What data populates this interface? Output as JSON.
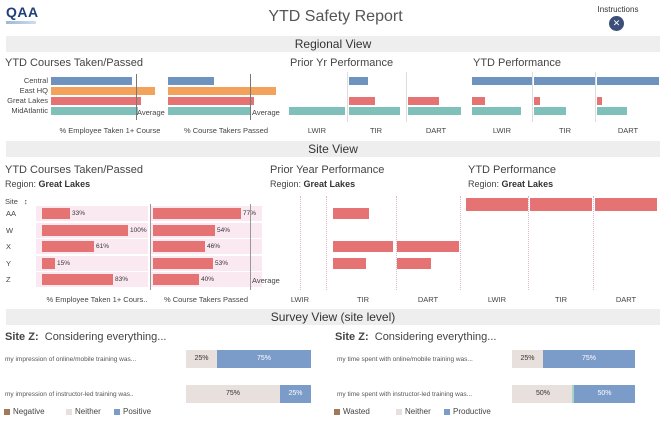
{
  "header": {
    "logo_text": "QAA",
    "title": "YTD Safety Report",
    "instructions_label": "Instructions",
    "instructions_icon": "tools-icon"
  },
  "regional": {
    "banner": "Regional View",
    "courses_title": "YTD Courses Taken/Passed",
    "prior_title": "Prior Yr Performance",
    "ytd_title": "YTD Performance",
    "regions": [
      "Central",
      "East HQ",
      "Great Lakes",
      "MidAtlantic"
    ],
    "colors": [
      "#6f93bf",
      "#f2a25b",
      "#e57373",
      "#7fc1ba"
    ],
    "average_label": "Average",
    "axis_taken": "% Employee Taken 1+ Course",
    "axis_passed": "% Course Takers Passed",
    "metrics": [
      "LWIR",
      "TIR",
      "DART"
    ],
    "taken": [
      0.72,
      0.93,
      0.8,
      0.78
    ],
    "passed": [
      0.42,
      0.98,
      0.78,
      0.75
    ],
    "prior": {
      "LWIR": [
        0,
        0,
        0,
        1.0
      ],
      "TIR": [
        0.35,
        0,
        0.48,
        0.95
      ],
      "DART": [
        0,
        0,
        0.55,
        0.95
      ]
    },
    "ytd": {
      "LWIR": [
        1.0,
        0,
        0.22,
        0.82
      ],
      "TIR": [
        1.0,
        0,
        0.1,
        0.52
      ],
      "DART": [
        1.0,
        0,
        0.08,
        0.48
      ]
    }
  },
  "site": {
    "banner": "Site View",
    "courses_title": "YTD Courses Taken/Passed",
    "prior_title": "Prior Year Performance",
    "ytd_title": "YTD Performance",
    "region_prefix": "Region:",
    "region_name": "Great Lakes",
    "site_header": "Site",
    "sites": [
      "AA",
      "W",
      "X",
      "Y",
      "Z"
    ],
    "taken_labels": [
      "33%",
      "100%",
      "61%",
      "15%",
      "83%"
    ],
    "taken": [
      0.33,
      1.0,
      0.61,
      0.15,
      0.83
    ],
    "passed_labels": [
      "77%",
      "54%",
      "46%",
      "53%",
      "40%"
    ],
    "passed": [
      0.77,
      0.54,
      0.46,
      0.53,
      0.4
    ],
    "average_label": "Average",
    "axis_taken": "% Employee Taken 1+ Cours..",
    "axis_passed": "% Course Takers Passed",
    "metrics": [
      "LWIR",
      "TIR",
      "DART"
    ],
    "prior": {
      "LWIR": [
        0,
        0,
        0,
        0,
        0
      ],
      "TIR": [
        0.6,
        0,
        1.0,
        0.55,
        0
      ],
      "DART": [
        0,
        0,
        1.0,
        0.55,
        0
      ]
    },
    "ytd": {
      "LWIR": [
        1.0,
        0,
        0,
        0,
        0
      ],
      "TIR": [
        1.0,
        0,
        0,
        0,
        0
      ],
      "DART": [
        1.0,
        0,
        0,
        0,
        0
      ]
    }
  },
  "survey": {
    "banner": "Survey View (site level)",
    "left": {
      "site": "Site Z:",
      "heading": "Considering everything...",
      "questions": [
        {
          "text": "my impression of online/mobile training was...",
          "neg": 0,
          "neu": 25,
          "pos": 75,
          "neg_label": "",
          "neu_label": "25%",
          "pos_label": "75%"
        },
        {
          "text": "my impression of instructor-led training was..",
          "neg": 0,
          "neu": 75,
          "pos": 25,
          "neg_label": "",
          "neu_label": "75%",
          "pos_label": "25%"
        }
      ],
      "legend": [
        "Negative",
        "Neither",
        "Positive"
      ]
    },
    "right": {
      "site": "Site Z:",
      "heading": "Considering everything...",
      "questions": [
        {
          "text": "my time spent with online/mobile training was...",
          "neg": 0,
          "neu": 25,
          "pos": 75,
          "neg_label": "",
          "neu_label": "25%",
          "pos_label": "75%"
        },
        {
          "text": "my time spent with instructor-led training was...",
          "neg": 0,
          "neu": 50,
          "pos": 50,
          "neg_label": "",
          "neu_label": "50%",
          "pos_label": "50%"
        }
      ],
      "legend": [
        "Wasted",
        "Neither",
        "Productive"
      ]
    },
    "colors": {
      "neg": "#a0785a",
      "neu": "#e8e0dc",
      "pos": "#7b9bc9",
      "mid": "#a7d4c4"
    }
  }
}
